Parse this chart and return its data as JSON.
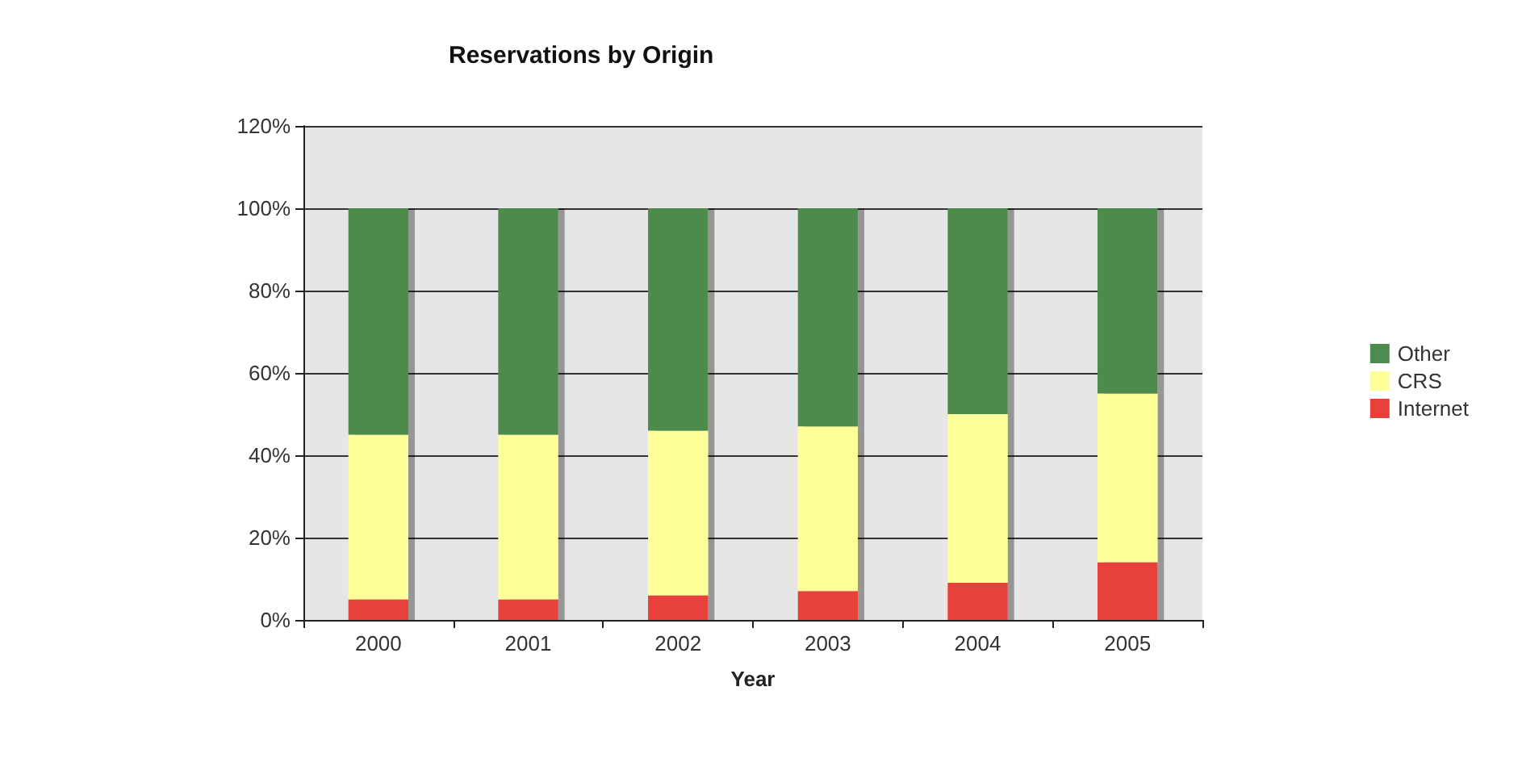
{
  "chart_data": {
    "type": "bar",
    "title": "Reservations by Origin",
    "xlabel": "Year",
    "categories": [
      "2000",
      "2001",
      "2002",
      "2003",
      "2004",
      "2005"
    ],
    "stacked": true,
    "series": [
      {
        "name": "Internet",
        "color": "#e8413a",
        "values": [
          5,
          5,
          6,
          7,
          9,
          14
        ]
      },
      {
        "name": "CRS",
        "color": "#ffff99",
        "values": [
          40,
          40,
          40,
          40,
          41,
          41
        ]
      },
      {
        "name": "Other",
        "color": "#4e8b4e",
        "values": [
          55,
          55,
          54,
          53,
          50,
          45
        ]
      }
    ],
    "ylim": [
      0,
      120
    ],
    "yticks": [
      {
        "value": 0,
        "label": "0%"
      },
      {
        "value": 20,
        "label": "20%"
      },
      {
        "value": 40,
        "label": "40%"
      },
      {
        "value": 60,
        "label": "60%"
      },
      {
        "value": 80,
        "label": "80%"
      },
      {
        "value": 100,
        "label": "100%"
      },
      {
        "value": 120,
        "label": "120%"
      }
    ],
    "grid": "y",
    "legend": "right"
  }
}
